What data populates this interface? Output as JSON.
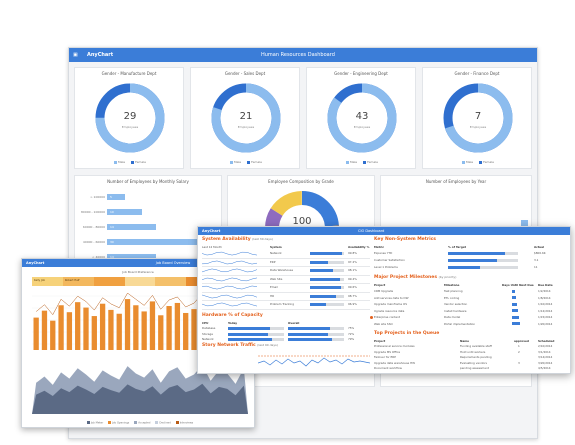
{
  "hr": {
    "brand": "AnyChart",
    "title": "Human Resources Dashboard",
    "gender_cards": [
      {
        "title": "Gender - Manufacture Dept",
        "value": "29",
        "sub": "Employees",
        "male": 0.75
      },
      {
        "title": "Gender - Sales Dept",
        "value": "21",
        "sub": "Employees",
        "male": 0.8
      },
      {
        "title": "Gender - Engineering Dept",
        "value": "43",
        "sub": "Employees",
        "male": 0.85
      },
      {
        "title": "Gender - Finance Dept",
        "value": "7",
        "sub": "Employees",
        "male": 0.7
      }
    ],
    "legend": {
      "male": "Male",
      "female": "Female"
    },
    "salary_title": "Number of Employees by Monthly Salary",
    "salary_bars": [
      {
        "label": "> 100000",
        "value": 5
      },
      {
        "label": "80000 - 100000",
        "value": 10
      },
      {
        "label": "60000 - 80000",
        "value": 14
      },
      {
        "label": "40000 - 60000",
        "value": 30
      },
      {
        "label": "< 40000",
        "value": 14
      }
    ],
    "grade_title": "Employee Composition by Grade",
    "grade_total": "100",
    "year_title": "Number of Employees by Year",
    "year_bars": [
      12,
      18,
      15,
      22,
      26,
      30,
      34,
      38,
      44,
      52,
      60,
      66,
      74,
      86
    ]
  },
  "jobboard": {
    "brand": "AnyChart",
    "title": "Job Board Overview",
    "caption": "Job Board Preference",
    "heat": [
      {
        "label": "Kelly Job",
        "color": "#f6d27a"
      },
      {
        "label": "Robert Half",
        "color": "#f3b85e"
      },
      {
        "label": "",
        "color": "#f0a040"
      },
      {
        "label": "",
        "color": "#f8d996"
      },
      {
        "label": "",
        "color": "#f4c06a"
      },
      {
        "label": "",
        "color": "#e98c2f"
      },
      {
        "label": "",
        "color": "#e6722a"
      }
    ],
    "legend": [
      "Job Meter",
      "Job Openings",
      "Accepted",
      "Declined",
      "Interviews"
    ],
    "orange_bars": [
      42,
      51,
      38,
      58,
      49,
      62,
      55,
      44,
      60,
      52,
      47,
      66,
      58,
      50,
      63,
      45,
      57,
      61,
      48,
      53,
      65,
      46,
      59,
      54,
      41,
      62
    ],
    "area_values": [
      30,
      36,
      28,
      40,
      34,
      44,
      38,
      31,
      42,
      37,
      33,
      46,
      39,
      35,
      43,
      30,
      41,
      45,
      34,
      38,
      47,
      32,
      42,
      39,
      29,
      44
    ],
    "colors": {
      "orange": "#e98c2f",
      "area": "#5b6a85",
      "area2": "#9aa7bd",
      "line": "#c6cfdd"
    }
  },
  "cio": {
    "brand": "AnyChart",
    "title": "CIO Dashboard",
    "availability": {
      "heading": "System Availability",
      "period": "(last 30 days)",
      "col_system": "System",
      "col_avail": "Availability %",
      "sub": "Last 12 Month",
      "rows": [
        {
          "name": "Network",
          "pct": "99.8%",
          "val": 0.998
        },
        {
          "name": "ERP",
          "pct": "97.2%",
          "val": 0.972
        },
        {
          "name": "Data Warehouse",
          "pct": "98.1%",
          "val": 0.981
        },
        {
          "name": "Web Site",
          "pct": "99.4%",
          "val": 0.994
        },
        {
          "name": "Email",
          "pct": "99.6%",
          "val": 0.996
        },
        {
          "name": "HR",
          "pct": "98.7%",
          "val": 0.987
        },
        {
          "name": "Problem Tracking",
          "pct": "96.9%",
          "val": 0.969
        }
      ],
      "legend": [
        "Actual",
        "Target"
      ]
    },
    "key_metrics": {
      "heading": "Key Non-System Metrics",
      "cols": [
        "Metric",
        "% of Target",
        "Actual"
      ],
      "rows": [
        {
          "name": "Expense YTD",
          "val": 0.82,
          "actual": "$800.6K"
        },
        {
          "name": "Customer Satisfaction",
          "val": 0.7,
          "actual": "3.1"
        },
        {
          "name": "Level 1 Problems",
          "val": 0.45,
          "actual": "11"
        }
      ]
    },
    "capacity": {
      "heading": "Hardware % of Capacity",
      "cols": [
        "CPU",
        "Today",
        "Overall"
      ],
      "rows": [
        {
          "name": "Database",
          "pct": "75%",
          "val": 0.75
        },
        {
          "name": "Storage",
          "pct": "72%",
          "val": 0.72
        },
        {
          "name": "Network",
          "pct": "79%",
          "val": 0.79
        }
      ]
    },
    "milestones": {
      "heading": "Major Project Milestones",
      "sub": "(by priority)",
      "cols": [
        "Project",
        "Milestone",
        "Days Until Next Due",
        "Due Date"
      ],
      "rows": [
        {
          "project": "CRM Upgrade",
          "milestone": "Test planning",
          "due": "1/2/2014"
        },
        {
          "project": "Add services data to DW",
          "milestone": "ETL coding",
          "due": "1/8/2014"
        },
        {
          "project": "Upgrade mainframe OS",
          "milestone": "Vendor selection",
          "due": "1/10/2014"
        },
        {
          "project": "Ugrade resource data",
          "milestone": "Install hardware",
          "due": "1/12/2014"
        },
        {
          "project": "Enterprise content",
          "milestone": "Data model",
          "due": "1/15/2014"
        },
        {
          "project": "Web site SSO",
          "milestone": "Portal implementation",
          "due": "1/20/2014"
        }
      ]
    },
    "queue": {
      "heading": "Top Projects in the Queue",
      "cols": [
        "Project",
        "Name",
        "approved",
        "Scheduled"
      ],
      "rows": [
        {
          "project": "Professional service modules",
          "name": "Funding available staff",
          "approved": "1",
          "sched": "2/10/2014"
        },
        {
          "project": "Upgrade MS Office",
          "name": "Hold until workers",
          "approved": "2",
          "sched": "3/1/2014"
        },
        {
          "project": "Failover for ERP",
          "name": "Requirements pending",
          "approved": "",
          "sched": "3/14/2014"
        },
        {
          "project": "Upgrade data warehouse HW",
          "name": "Evaluating vendors",
          "approved": "3",
          "sched": "3/20/2014"
        },
        {
          "project": "Document workflow",
          "name": "pending assessment",
          "approved": "",
          "sched": "4/5/2014"
        }
      ]
    },
    "traffic": {
      "heading": "Story Network Traffic",
      "sub": "(last 90 days)",
      "legend": [
        "Actual traffic for last 6 months",
        "Peak traffic for last 6 months",
        "Capacity",
        "Trend"
      ]
    }
  }
}
